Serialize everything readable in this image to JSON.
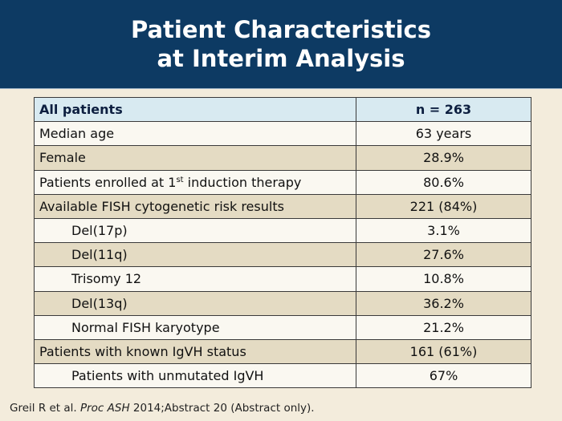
{
  "title": {
    "line1": "Patient Characteristics",
    "line2": "at Interim Analysis"
  },
  "table": {
    "header": {
      "label": "All patients",
      "value": "n = 263"
    },
    "rows": [
      {
        "label": "Median age",
        "value": "63 years"
      },
      {
        "label": "Female",
        "value": "28.9%"
      },
      {
        "label_pre": "Patients enrolled at 1",
        "label_sup": "st",
        "label_post": " induction therapy",
        "value": "80.6%"
      },
      {
        "label": "Available FISH cytogenetic risk results",
        "value": "221 (84%)"
      },
      {
        "label": "Del(17p)",
        "value": "3.1%"
      },
      {
        "label": "Del(11q)",
        "value": "27.6%"
      },
      {
        "label": "Trisomy 12",
        "value": "10.8%"
      },
      {
        "label": "Del(13q)",
        "value": "36.2%"
      },
      {
        "label": "Normal FISH karyotype",
        "value": "21.2%"
      },
      {
        "label": "Patients with known IgVH status",
        "value": "161 (61%)"
      },
      {
        "label": "Patients with unmutated IgVH",
        "value": "67%"
      }
    ]
  },
  "reference": {
    "authors": "Greil R et al. ",
    "journal": "Proc ASH",
    "details": " 2014;Abstract 20 (Abstract only)."
  }
}
